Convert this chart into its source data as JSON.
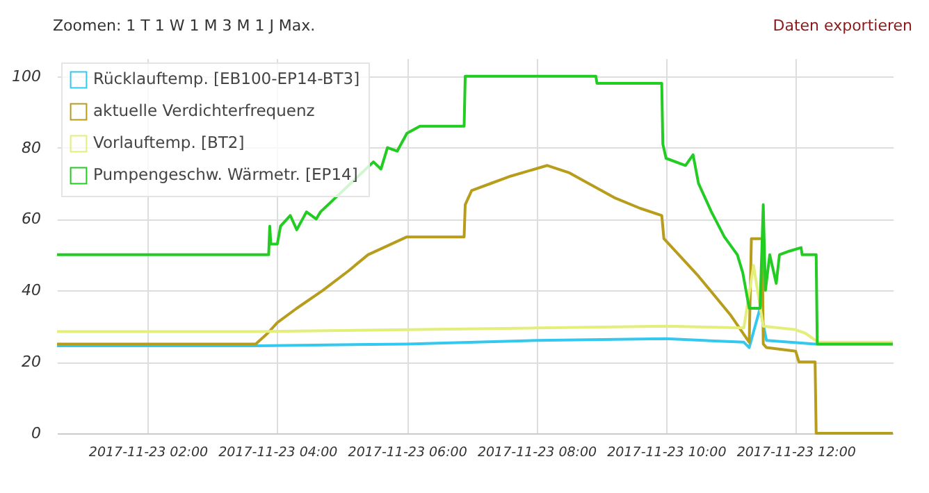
{
  "chart_data": {
    "type": "line",
    "annotations": [
      "Zoomen: 1 T 1 W 1 M 3 M 1 J Max.",
      "Daten exportieren"
    ],
    "xlim": [
      "2017-11-23T00:36",
      "2017-11-23T13:30"
    ],
    "xticks": [
      {
        "value": "2017-11-23T02:00",
        "label": "2017-11-23 02:00"
      },
      {
        "value": "2017-11-23T04:00",
        "label": "2017-11-23 04:00"
      },
      {
        "value": "2017-11-23T06:00",
        "label": "2017-11-23 06:00"
      },
      {
        "value": "2017-11-23T08:00",
        "label": "2017-11-23 08:00"
      },
      {
        "value": "2017-11-23T10:00",
        "label": "2017-11-23 10:00"
      },
      {
        "value": "2017-11-23T12:00",
        "label": "2017-11-23 12:00"
      }
    ],
    "ylim": [
      0,
      105
    ],
    "yticks": [
      0,
      20,
      40,
      60,
      80,
      100
    ],
    "grid": true,
    "legend": "top left",
    "series": [
      {
        "name": "Rücklauftemp. [EB100-EP14-BT3]",
        "color": "#33c8ee",
        "x": [
          "2017-11-23T00:36",
          "2017-11-23T03:42",
          "2017-11-23T06:00",
          "2017-11-23T08:00",
          "2017-11-23T10:00",
          "2017-11-23T11:12",
          "2017-11-23T11:17",
          "2017-11-23T11:27",
          "2017-11-23T11:33",
          "2017-11-23T12:18",
          "2017-11-23T13:30"
        ],
        "values": [
          24.5,
          24.5,
          25,
          26,
          26.5,
          25.5,
          24,
          35,
          26,
          25,
          25
        ]
      },
      {
        "name": "aktuelle Verdichterfrequenz",
        "color": "#b89c1c",
        "x": [
          "2017-11-23T00:36",
          "2017-11-23T03:40",
          "2017-11-23T03:51",
          "2017-11-23T04:00",
          "2017-11-23T04:18",
          "2017-11-23T04:42",
          "2017-11-23T05:06",
          "2017-11-23T05:24",
          "2017-11-23T06:00",
          "2017-11-23T06:53",
          "2017-11-23T06:54",
          "2017-11-23T07:00",
          "2017-11-23T07:18",
          "2017-11-23T07:36",
          "2017-11-23T08:10",
          "2017-11-23T08:30",
          "2017-11-23T08:48",
          "2017-11-23T09:12",
          "2017-11-23T09:36",
          "2017-11-23T09:56",
          "2017-11-23T09:58",
          "2017-11-23T10:30",
          "2017-11-23T11:00",
          "2017-11-23T11:17",
          "2017-11-23T11:19",
          "2017-11-23T11:29",
          "2017-11-23T11:30",
          "2017-11-23T11:33",
          "2017-11-23T12:00",
          "2017-11-23T12:03",
          "2017-11-23T12:18",
          "2017-11-23T12:19",
          "2017-11-23T13:30"
        ],
        "values": [
          25,
          25,
          28,
          31,
          35,
          40,
          45.5,
          50,
          55,
          55,
          64,
          68,
          70,
          72,
          75,
          73,
          70,
          66,
          63,
          61,
          54.5,
          44,
          33,
          25.5,
          54.5,
          54.5,
          25,
          24,
          23,
          20,
          20,
          0,
          0
        ]
      },
      {
        "name": "Vorlauftemp. [BT2]",
        "color": "#e4ee7a",
        "x": [
          "2017-11-23T00:36",
          "2017-11-23T03:42",
          "2017-11-23T06:00",
          "2017-11-23T08:00",
          "2017-11-23T10:00",
          "2017-11-23T11:12",
          "2017-11-23T11:21",
          "2017-11-23T11:30",
          "2017-11-23T12:00",
          "2017-11-23T12:09",
          "2017-11-23T12:21",
          "2017-11-23T13:30"
        ],
        "values": [
          28.5,
          28.5,
          29,
          29.5,
          30,
          29.5,
          47,
          30,
          29,
          28,
          25.5,
          25.5
        ]
      },
      {
        "name": "Pumpengeschw. Wärmetr. [EP14]",
        "color": "#22cc22",
        "x": [
          "2017-11-23T00:36",
          "2017-11-23T03:52",
          "2017-11-23T03:53",
          "2017-11-23T03:54",
          "2017-11-23T04:00",
          "2017-11-23T04:03",
          "2017-11-23T04:12",
          "2017-11-23T04:18",
          "2017-11-23T04:27",
          "2017-11-23T04:36",
          "2017-11-23T04:40",
          "2017-11-23T05:29",
          "2017-11-23T05:36",
          "2017-11-23T05:42",
          "2017-11-23T05:51",
          "2017-11-23T06:00",
          "2017-11-23T06:12",
          "2017-11-23T06:53",
          "2017-11-23T06:54",
          "2017-11-23T08:55",
          "2017-11-23T08:56",
          "2017-11-23T09:56",
          "2017-11-23T09:57",
          "2017-11-23T10:00",
          "2017-11-23T10:18",
          "2017-11-23T10:25",
          "2017-11-23T10:30",
          "2017-11-23T10:42",
          "2017-11-23T10:54",
          "2017-11-23T11:06",
          "2017-11-23T11:11",
          "2017-11-23T11:17",
          "2017-11-23T11:27",
          "2017-11-23T11:30",
          "2017-11-23T11:32",
          "2017-11-23T11:36",
          "2017-11-23T11:42",
          "2017-11-23T11:45",
          "2017-11-23T11:54",
          "2017-11-23T12:05",
          "2017-11-23T12:06",
          "2017-11-23T12:19",
          "2017-11-23T12:20",
          "2017-11-23T13:30"
        ],
        "values": [
          50,
          50,
          58,
          53,
          53,
          58,
          61,
          57,
          62,
          60,
          62,
          76,
          74,
          80,
          79,
          84,
          86,
          86,
          100,
          100,
          98,
          98,
          81,
          77,
          75,
          78,
          70,
          62,
          55,
          50,
          45,
          35,
          35,
          64,
          40,
          50,
          42,
          50,
          51,
          52,
          50,
          50,
          25,
          25
        ]
      }
    ]
  }
}
